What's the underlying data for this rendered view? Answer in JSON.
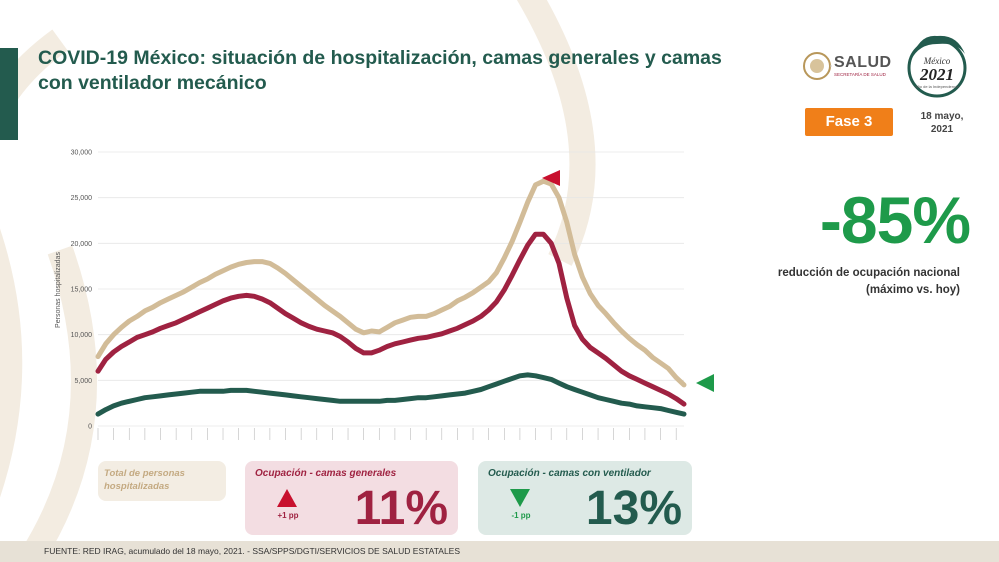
{
  "title": "COVID-19 México: situación de hospitalización, camas generales y camas con ventilador mecánico",
  "header": {
    "salud_label": "SALUD",
    "salud_sub": "SECRETARÍA DE SALUD",
    "year_logo_year": "2021",
    "year_logo_top": "México",
    "year_logo_sub": "Año de la Independencia",
    "fase_label": "Fase 3",
    "date_label": "18 mayo, 2021"
  },
  "summary": {
    "big_value": "-85%",
    "big_desc": "reducción de ocupación nacional (máximo vs. hoy)"
  },
  "cards": {
    "total_label": "Total de personas hospitalizadas",
    "general": {
      "title": "Ocupación - camas generales",
      "change": "+1 pp",
      "value": "11%"
    },
    "ventilator": {
      "title": "Ocupación - camas con ventilador",
      "change": "-1 pp",
      "value": "13%"
    }
  },
  "footer": "FUENTE: RED IRAG, acumulado del 18 mayo, 2021. - SSA/SPPS/DGTI/SERVICIOS DE SALUD ESTATALES",
  "colors": {
    "total": "#d2bc98",
    "general": "#9f2241",
    "ventilator": "#235b4e",
    "accent_green": "#1e9a4a",
    "fase": "#f07f19"
  },
  "chart_data": {
    "type": "line",
    "ylabel": "Personas hospitalizadas",
    "ylim": [
      0,
      30000
    ],
    "yticks": [
      "0",
      "5,000",
      "10,000",
      "15,000",
      "20,000",
      "25,000",
      "30,000"
    ],
    "ytick_values": [
      0,
      5000,
      10000,
      15000,
      20000,
      25000,
      30000
    ],
    "x_count": 76,
    "series": [
      {
        "key": "total",
        "color": "#d2bc98",
        "values": [
          7600,
          9000,
          10000,
          10800,
          11500,
          12000,
          12600,
          13000,
          13500,
          13900,
          14300,
          14700,
          15200,
          15700,
          16100,
          16600,
          17000,
          17400,
          17700,
          17900,
          18000,
          18000,
          17800,
          17300,
          16700,
          16000,
          15300,
          14600,
          13900,
          13200,
          12600,
          12000,
          11300,
          10600,
          10200,
          10400,
          10300,
          10800,
          11300,
          11600,
          11900,
          12000,
          12000,
          12300,
          12700,
          13100,
          13700,
          14100,
          14600,
          15200,
          15800,
          16800,
          18400,
          20200,
          22300,
          24500,
          26400,
          26800,
          26500,
          25000,
          22300,
          18800,
          16300,
          14500,
          13200,
          12300,
          11300,
          10400,
          9600,
          8900,
          8300,
          7500,
          6900,
          6300,
          5300,
          4500
        ]
      },
      {
        "key": "general",
        "color": "#9f2241",
        "values": [
          6000,
          7300,
          8100,
          8700,
          9200,
          9700,
          10000,
          10300,
          10700,
          11000,
          11300,
          11700,
          12100,
          12500,
          12900,
          13300,
          13700,
          14000,
          14200,
          14300,
          14200,
          13900,
          13500,
          12900,
          12300,
          11800,
          11300,
          10900,
          10600,
          10400,
          10200,
          9800,
          9200,
          8500,
          8000,
          8000,
          8300,
          8700,
          9000,
          9200,
          9400,
          9600,
          9700,
          9900,
          10100,
          10400,
          10700,
          11100,
          11500,
          12000,
          12700,
          13600,
          14900,
          16500,
          18200,
          19800,
          21000,
          21000,
          20000,
          17800,
          14000,
          11000,
          9500,
          8600,
          8000,
          7400,
          6700,
          6000,
          5500,
          5100,
          4700,
          4300,
          3900,
          3500,
          3000,
          2400
        ]
      },
      {
        "key": "ventilator",
        "color": "#235b4e",
        "values": [
          1300,
          1800,
          2200,
          2500,
          2700,
          2900,
          3100,
          3200,
          3300,
          3400,
          3500,
          3600,
          3700,
          3800,
          3800,
          3800,
          3800,
          3900,
          3900,
          3900,
          3800,
          3700,
          3600,
          3500,
          3400,
          3300,
          3200,
          3100,
          3000,
          2900,
          2800,
          2700,
          2700,
          2700,
          2700,
          2700,
          2700,
          2800,
          2800,
          2900,
          3000,
          3100,
          3100,
          3200,
          3300,
          3400,
          3500,
          3600,
          3800,
          4000,
          4300,
          4600,
          4900,
          5200,
          5500,
          5600,
          5500,
          5300,
          5100,
          4700,
          4300,
          4000,
          3700,
          3400,
          3100,
          2900,
          2700,
          2500,
          2400,
          2200,
          2100,
          2000,
          1900,
          1700,
          1500,
          1300
        ]
      }
    ]
  }
}
